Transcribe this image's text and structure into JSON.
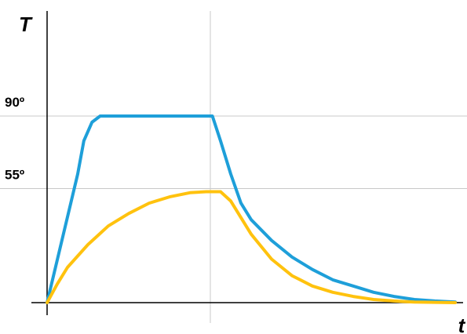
{
  "chart_data": {
    "type": "line",
    "title": "",
    "xlabel": "t",
    "ylabel": "T",
    "y_ticks": [
      {
        "value": 90,
        "label": "90º"
      },
      {
        "value": 55,
        "label": "55º"
      }
    ],
    "x_gridlines": [
      8
    ],
    "xlim": [
      0,
      20
    ],
    "ylim": [
      -7,
      110
    ],
    "grid": true,
    "legend": "none",
    "series": [
      {
        "color": "#1e9fd9",
        "points": [
          [
            0,
            0
          ],
          [
            1.5,
            62
          ],
          [
            1.8,
            78
          ],
          [
            2.2,
            87
          ],
          [
            2.6,
            90
          ],
          [
            8.1,
            90
          ],
          [
            8.5,
            78
          ],
          [
            9.0,
            62
          ],
          [
            9.5,
            48
          ],
          [
            10.0,
            40
          ],
          [
            11.0,
            30
          ],
          [
            12.0,
            22
          ],
          [
            13.0,
            16
          ],
          [
            14.0,
            11
          ],
          [
            15.0,
            8
          ],
          [
            16.0,
            5
          ],
          [
            17.0,
            3
          ],
          [
            18.0,
            1.5
          ],
          [
            19.0,
            0.8
          ],
          [
            20.0,
            0.3
          ]
        ]
      },
      {
        "color": "#ffc20e",
        "points": [
          [
            0,
            0
          ],
          [
            0.5,
            9
          ],
          [
            1.0,
            17
          ],
          [
            2.0,
            28
          ],
          [
            3.0,
            37
          ],
          [
            4.0,
            43
          ],
          [
            5.0,
            48
          ],
          [
            6.0,
            51
          ],
          [
            7.0,
            53
          ],
          [
            7.8,
            53.5
          ],
          [
            8.5,
            53.5
          ],
          [
            9.0,
            49
          ],
          [
            9.5,
            41
          ],
          [
            10.0,
            33
          ],
          [
            10.5,
            27
          ],
          [
            11.0,
            21
          ],
          [
            12.0,
            13
          ],
          [
            13.0,
            8
          ],
          [
            14.0,
            5
          ],
          [
            15.0,
            3
          ],
          [
            16.0,
            1.5
          ],
          [
            17.0,
            0.8
          ],
          [
            18.0,
            0.3
          ],
          [
            20.0,
            0
          ]
        ]
      }
    ]
  }
}
